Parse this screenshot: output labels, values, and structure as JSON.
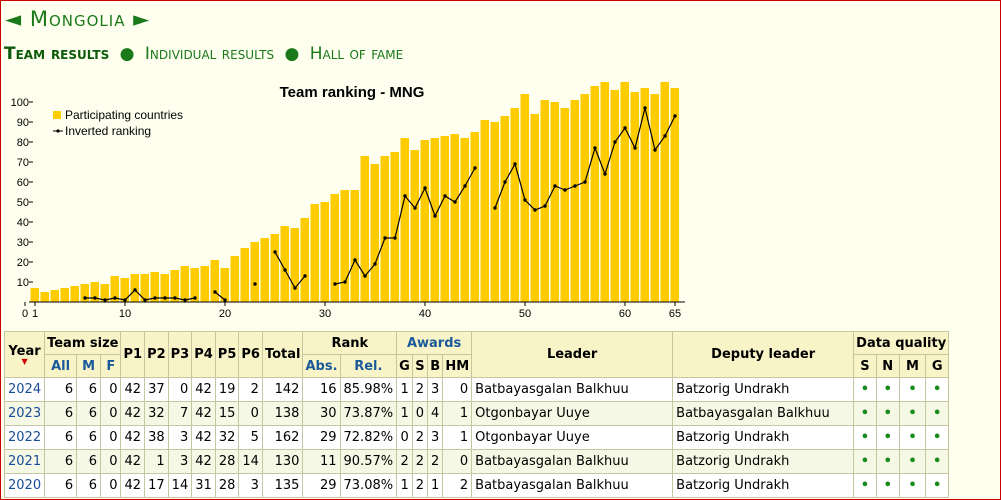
{
  "header": {
    "prev_arrow": "◄",
    "country": "Mongolia",
    "next_arrow": "►"
  },
  "nav": {
    "team_results": "Team results",
    "separator": "●",
    "individual_results": "Individual results",
    "hall_of_fame": "Hall of fame"
  },
  "chart_data": {
    "type": "bar",
    "title": "Team ranking - MNG",
    "legend": {
      "position": "top-left",
      "bar_label": "Participating countries",
      "line_label": "Inverted ranking"
    },
    "xlim": [
      0,
      66
    ],
    "ylim": [
      0,
      110
    ],
    "x_ticks": [
      0,
      1,
      10,
      20,
      30,
      40,
      50,
      60,
      65
    ],
    "y_ticks": [
      10,
      20,
      30,
      40,
      50,
      60,
      70,
      80,
      90,
      100
    ],
    "bar_color": "#ffcc00",
    "line_color": "#000000",
    "series": [
      {
        "name": "Participating countries",
        "x": [
          1,
          2,
          3,
          4,
          5,
          6,
          7,
          8,
          9,
          10,
          11,
          12,
          13,
          14,
          15,
          16,
          17,
          18,
          19,
          20,
          21,
          22,
          23,
          24,
          25,
          26,
          27,
          28,
          29,
          30,
          31,
          32,
          33,
          34,
          35,
          36,
          37,
          38,
          39,
          40,
          41,
          42,
          43,
          44,
          45,
          46,
          47,
          48,
          49,
          50,
          51,
          52,
          53,
          54,
          55,
          56,
          57,
          58,
          59,
          60,
          61,
          62,
          63,
          64,
          65
        ],
        "values": [
          7,
          5,
          6,
          7,
          8,
          9,
          10,
          9,
          13,
          12,
          14,
          14,
          15,
          14,
          16,
          18,
          17,
          18,
          21,
          17,
          23,
          27,
          30,
          32,
          34,
          38,
          37,
          42,
          49,
          50,
          54,
          56,
          56,
          73,
          69,
          73,
          75,
          82,
          76,
          81,
          82,
          83,
          84,
          82,
          85,
          91,
          90,
          93,
          97,
          104,
          94,
          101,
          100,
          97,
          101,
          104,
          108,
          110,
          106,
          110,
          105,
          107,
          104,
          110,
          107
        ]
      },
      {
        "name": "Inverted ranking",
        "x": [
          6,
          7,
          8,
          9,
          10,
          11,
          12,
          13,
          14,
          15,
          16,
          17,
          19,
          20,
          23,
          25,
          26,
          27,
          28,
          31,
          32,
          33,
          34,
          35,
          36,
          37,
          38,
          39,
          40,
          41,
          42,
          43,
          44,
          45,
          47,
          48,
          49,
          50,
          51,
          52,
          53,
          54,
          55,
          56,
          57,
          58,
          59,
          60,
          61,
          62,
          63,
          64,
          65
        ],
        "values": [
          2,
          2,
          1,
          2,
          1,
          6,
          1,
          2,
          2,
          2,
          1,
          2,
          5,
          1,
          9,
          25,
          16,
          7,
          13,
          9,
          10,
          21,
          13,
          19,
          32,
          32,
          53,
          47,
          57,
          43,
          53,
          50,
          58,
          67,
          47,
          60,
          69,
          51,
          46,
          48,
          58,
          56,
          58,
          60,
          77,
          64,
          80,
          87,
          77,
          97,
          76,
          83,
          93
        ]
      }
    ]
  },
  "table": {
    "headers": {
      "year": "Year",
      "sort_icon": "▼",
      "team_size": "Team size",
      "all": "All",
      "m": "M",
      "f": "F",
      "p1": "P1",
      "p2": "P2",
      "p3": "P3",
      "p4": "P4",
      "p5": "P5",
      "p6": "P6",
      "total": "Total",
      "rank": "Rank",
      "abs": "Abs.",
      "rel": "Rel.",
      "awards": "Awards",
      "g": "G",
      "s": "S",
      "b": "B",
      "hm": "HM",
      "leader": "Leader",
      "deputy": "Deputy leader",
      "data_quality": "Data quality",
      "dq_s": "S",
      "dq_n": "N",
      "dq_m": "M",
      "dq_g": "G"
    },
    "rows": [
      {
        "year": "2024",
        "all": "6",
        "m": "6",
        "f": "0",
        "p1": "42",
        "p2": "37",
        "p3": "0",
        "p4": "42",
        "p5": "19",
        "p6": "2",
        "total": "142",
        "abs": "16",
        "rel": "85.98%",
        "g": "1",
        "s": "2",
        "b": "3",
        "hm": "0",
        "leader": "Batbayasgalan Balkhuu",
        "deputy": "Batzorig Undrakh",
        "dq_s": "•",
        "dq_n": "•",
        "dq_m": "•",
        "dq_g": "•"
      },
      {
        "year": "2023",
        "all": "6",
        "m": "6",
        "f": "0",
        "p1": "42",
        "p2": "32",
        "p3": "7",
        "p4": "42",
        "p5": "15",
        "p6": "0",
        "total": "138",
        "abs": "30",
        "rel": "73.87%",
        "g": "1",
        "s": "0",
        "b": "4",
        "hm": "1",
        "leader": "Otgonbayar Uuye",
        "deputy": "Batbayasgalan Balkhuu",
        "dq_s": "•",
        "dq_n": "•",
        "dq_m": "•",
        "dq_g": "•"
      },
      {
        "year": "2022",
        "all": "6",
        "m": "6",
        "f": "0",
        "p1": "42",
        "p2": "38",
        "p3": "3",
        "p4": "42",
        "p5": "32",
        "p6": "5",
        "total": "162",
        "abs": "29",
        "rel": "72.82%",
        "g": "0",
        "s": "2",
        "b": "3",
        "hm": "1",
        "leader": "Otgonbayar Uuye",
        "deputy": "Batzorig Undrakh",
        "dq_s": "•",
        "dq_n": "•",
        "dq_m": "•",
        "dq_g": "•"
      },
      {
        "year": "2021",
        "all": "6",
        "m": "6",
        "f": "0",
        "p1": "42",
        "p2": "1",
        "p3": "3",
        "p4": "42",
        "p5": "28",
        "p6": "14",
        "total": "130",
        "abs": "11",
        "rel": "90.57%",
        "g": "2",
        "s": "2",
        "b": "2",
        "hm": "0",
        "leader": "Batbayasgalan Balkhuu",
        "deputy": "Batzorig Undrakh",
        "dq_s": "•",
        "dq_n": "•",
        "dq_m": "•",
        "dq_g": "•"
      },
      {
        "year": "2020",
        "all": "6",
        "m": "6",
        "f": "0",
        "p1": "42",
        "p2": "17",
        "p3": "14",
        "p4": "31",
        "p5": "28",
        "p6": "3",
        "total": "135",
        "abs": "29",
        "rel": "73.08%",
        "g": "1",
        "s": "2",
        "b": "1",
        "hm": "2",
        "leader": "Batbayasgalan Balkhuu",
        "deputy": "Batzorig Undrakh",
        "dq_s": "•",
        "dq_n": "•",
        "dq_m": "•",
        "dq_g": "•"
      }
    ]
  }
}
